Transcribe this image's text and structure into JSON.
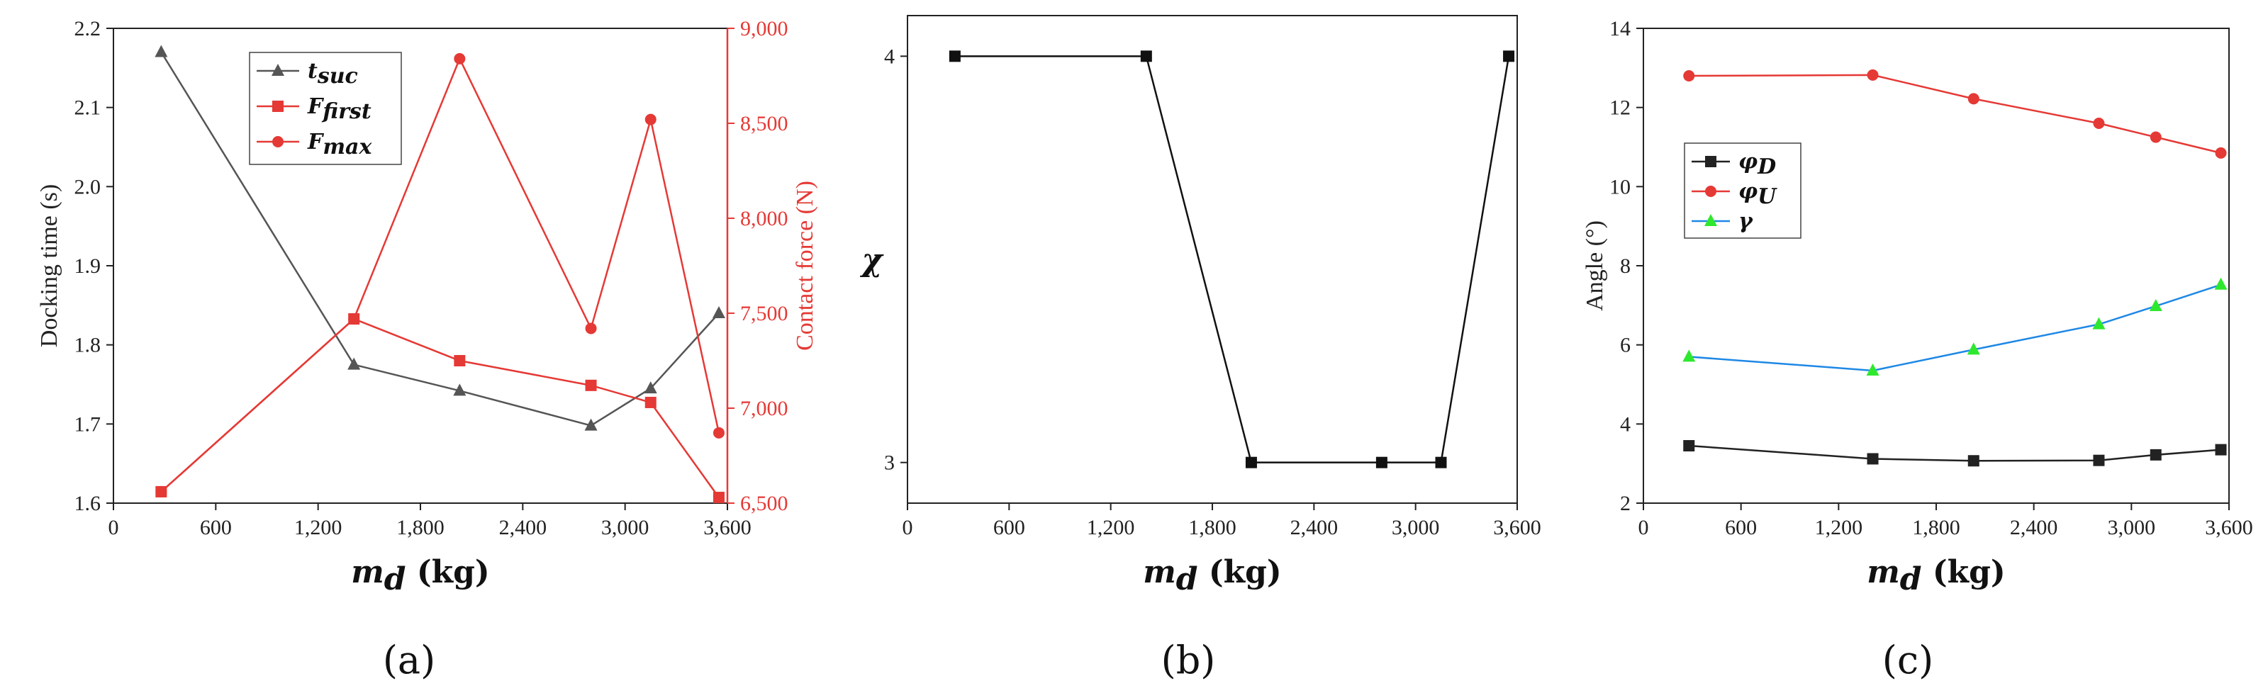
{
  "chart_data": [
    {
      "panel": "(a)",
      "type": "line",
      "x": [
        280,
        1410,
        2030,
        2800,
        3150,
        3550
      ],
      "xlim": [
        0,
        3600
      ],
      "xticks": [
        0,
        600,
        1200,
        1800,
        2400,
        3000,
        3600
      ],
      "xtick_labels": [
        "0",
        "600",
        "1,200",
        "1,800",
        "2,400",
        "3,000",
        "3,600"
      ],
      "xlabel_var": "m",
      "xlabel_sub": "d",
      "xlabel_unit": "(kg)",
      "ylabel": "Docking time (s)",
      "ylim": [
        1.6,
        2.2
      ],
      "yticks": [
        1.6,
        1.7,
        1.8,
        1.9,
        2.0,
        2.1,
        2.2
      ],
      "ytick_labels": [
        "1.6",
        "1.7",
        "1.8",
        "1.9",
        "2.0",
        "2.1",
        "2.2"
      ],
      "y2label": "Contact force (N)",
      "y2lim": [
        6500,
        9000
      ],
      "y2ticks": [
        6500,
        7000,
        7500,
        8000,
        8500,
        9000
      ],
      "y2tick_labels": [
        "6,500",
        "7,000",
        "7,500",
        "8,000",
        "8,500",
        "9,000"
      ],
      "legend_position": "top-center",
      "series": [
        {
          "name": "t",
          "name_sub": "suc",
          "axis": "left",
          "color": "#555555",
          "marker": "triangle",
          "values": [
            2.17,
            1.775,
            1.742,
            1.698,
            1.745,
            1.84
          ]
        },
        {
          "name": "F",
          "name_sub": "first",
          "axis": "right",
          "color": "#e53935",
          "marker": "square",
          "values": [
            6560,
            7470,
            7250,
            7120,
            7030,
            6530
          ]
        },
        {
          "name": "F",
          "name_sub": "max",
          "axis": "right",
          "color": "#e53935",
          "marker": "circle",
          "values": [
            6560,
            7470,
            8840,
            7420,
            8520,
            6870
          ]
        }
      ]
    },
    {
      "panel": "(b)",
      "type": "line",
      "x": [
        280,
        1410,
        2030,
        2800,
        3150,
        3550
      ],
      "xlim": [
        0,
        3600
      ],
      "xticks": [
        0,
        600,
        1200,
        1800,
        2400,
        3000,
        3600
      ],
      "xtick_labels": [
        "0",
        "600",
        "1,200",
        "1,800",
        "2,400",
        "3,000",
        "3,600"
      ],
      "xlabel_var": "m",
      "xlabel_sub": "d",
      "xlabel_unit": "(kg)",
      "ylabel": "χ",
      "ylim": [
        2.9,
        4.1
      ],
      "yticks": [
        3,
        4
      ],
      "ytick_labels": [
        "3",
        "4"
      ],
      "series": [
        {
          "axis": "left",
          "color": "#111111",
          "marker": "square",
          "values": [
            4,
            4,
            3,
            3,
            3,
            4
          ]
        }
      ]
    },
    {
      "panel": "(c)",
      "type": "line",
      "x": [
        280,
        1410,
        2030,
        2800,
        3150,
        3550
      ],
      "xlim": [
        0,
        3600
      ],
      "xticks": [
        0,
        600,
        1200,
        1800,
        2400,
        3000,
        3600
      ],
      "xtick_labels": [
        "0",
        "600",
        "1,200",
        "1,800",
        "2,400",
        "3,000",
        "3,600"
      ],
      "xlabel_var": "m",
      "xlabel_sub": "d",
      "xlabel_unit": "(kg)",
      "ylabel": "Angle (°)",
      "ylim": [
        2,
        14
      ],
      "yticks": [
        2,
        4,
        6,
        8,
        10,
        12,
        14
      ],
      "ytick_labels": [
        "2",
        "4",
        "6",
        "8",
        "10",
        "12",
        "14"
      ],
      "legend_position": "left",
      "series": [
        {
          "name": "φ",
          "name_sub": "D",
          "axis": "left",
          "color": "#222222",
          "marker": "square",
          "values": [
            3.45,
            3.12,
            3.07,
            3.08,
            3.22,
            3.35
          ]
        },
        {
          "name": "φ",
          "name_sub": "U",
          "axis": "left",
          "color": "#e53935",
          "marker": "circle",
          "values": [
            12.8,
            12.82,
            12.22,
            11.6,
            11.25,
            10.85
          ]
        },
        {
          "name": "γ",
          "name_sub": "",
          "axis": "left",
          "color": "#1e88e5",
          "marker": "triangle-green",
          "values": [
            5.7,
            5.35,
            5.88,
            6.52,
            6.98,
            7.52
          ]
        }
      ]
    }
  ]
}
